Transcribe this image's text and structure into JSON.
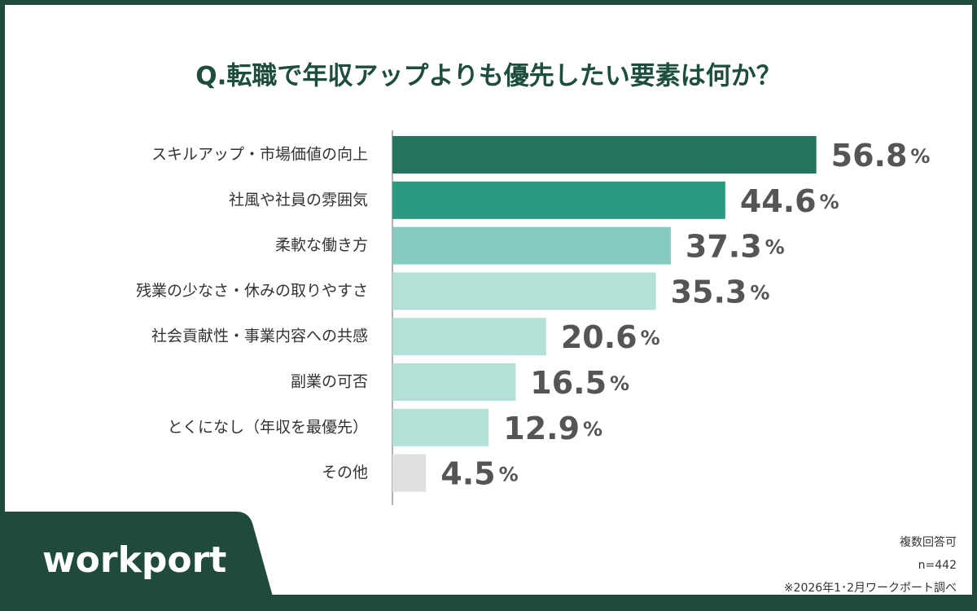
{
  "chart_data": {
    "type": "hbar",
    "title": "Q.転職で年収アップよりも優先したい要素は何か？",
    "categories": [
      "スキルアップ・市場価値の向上",
      "社風や社員の雰囲気",
      "柔軟な働き方",
      "残業の少なさ・休みの取りやすさ",
      "社会貢献性・事業内容への共感",
      "副業の可否",
      "とくになし（年収を最優先）",
      "その他"
    ],
    "values": [
      56.8,
      44.6,
      37.3,
      35.3,
      20.6,
      16.5,
      12.9,
      4.5
    ],
    "value_unit": "%",
    "colors": [
      "#24735f",
      "#2a9a80",
      "#86cbbf",
      "#b3e0d7",
      "#b3e0d7",
      "#b3e0d7",
      "#b3e0d7",
      "#e0e0e0"
    ],
    "xlim": [
      0,
      60
    ],
    "notes": [
      "複数回答可",
      "n=442",
      "※2026年1･2月ワークポート調べ"
    ],
    "logo": "workport"
  }
}
